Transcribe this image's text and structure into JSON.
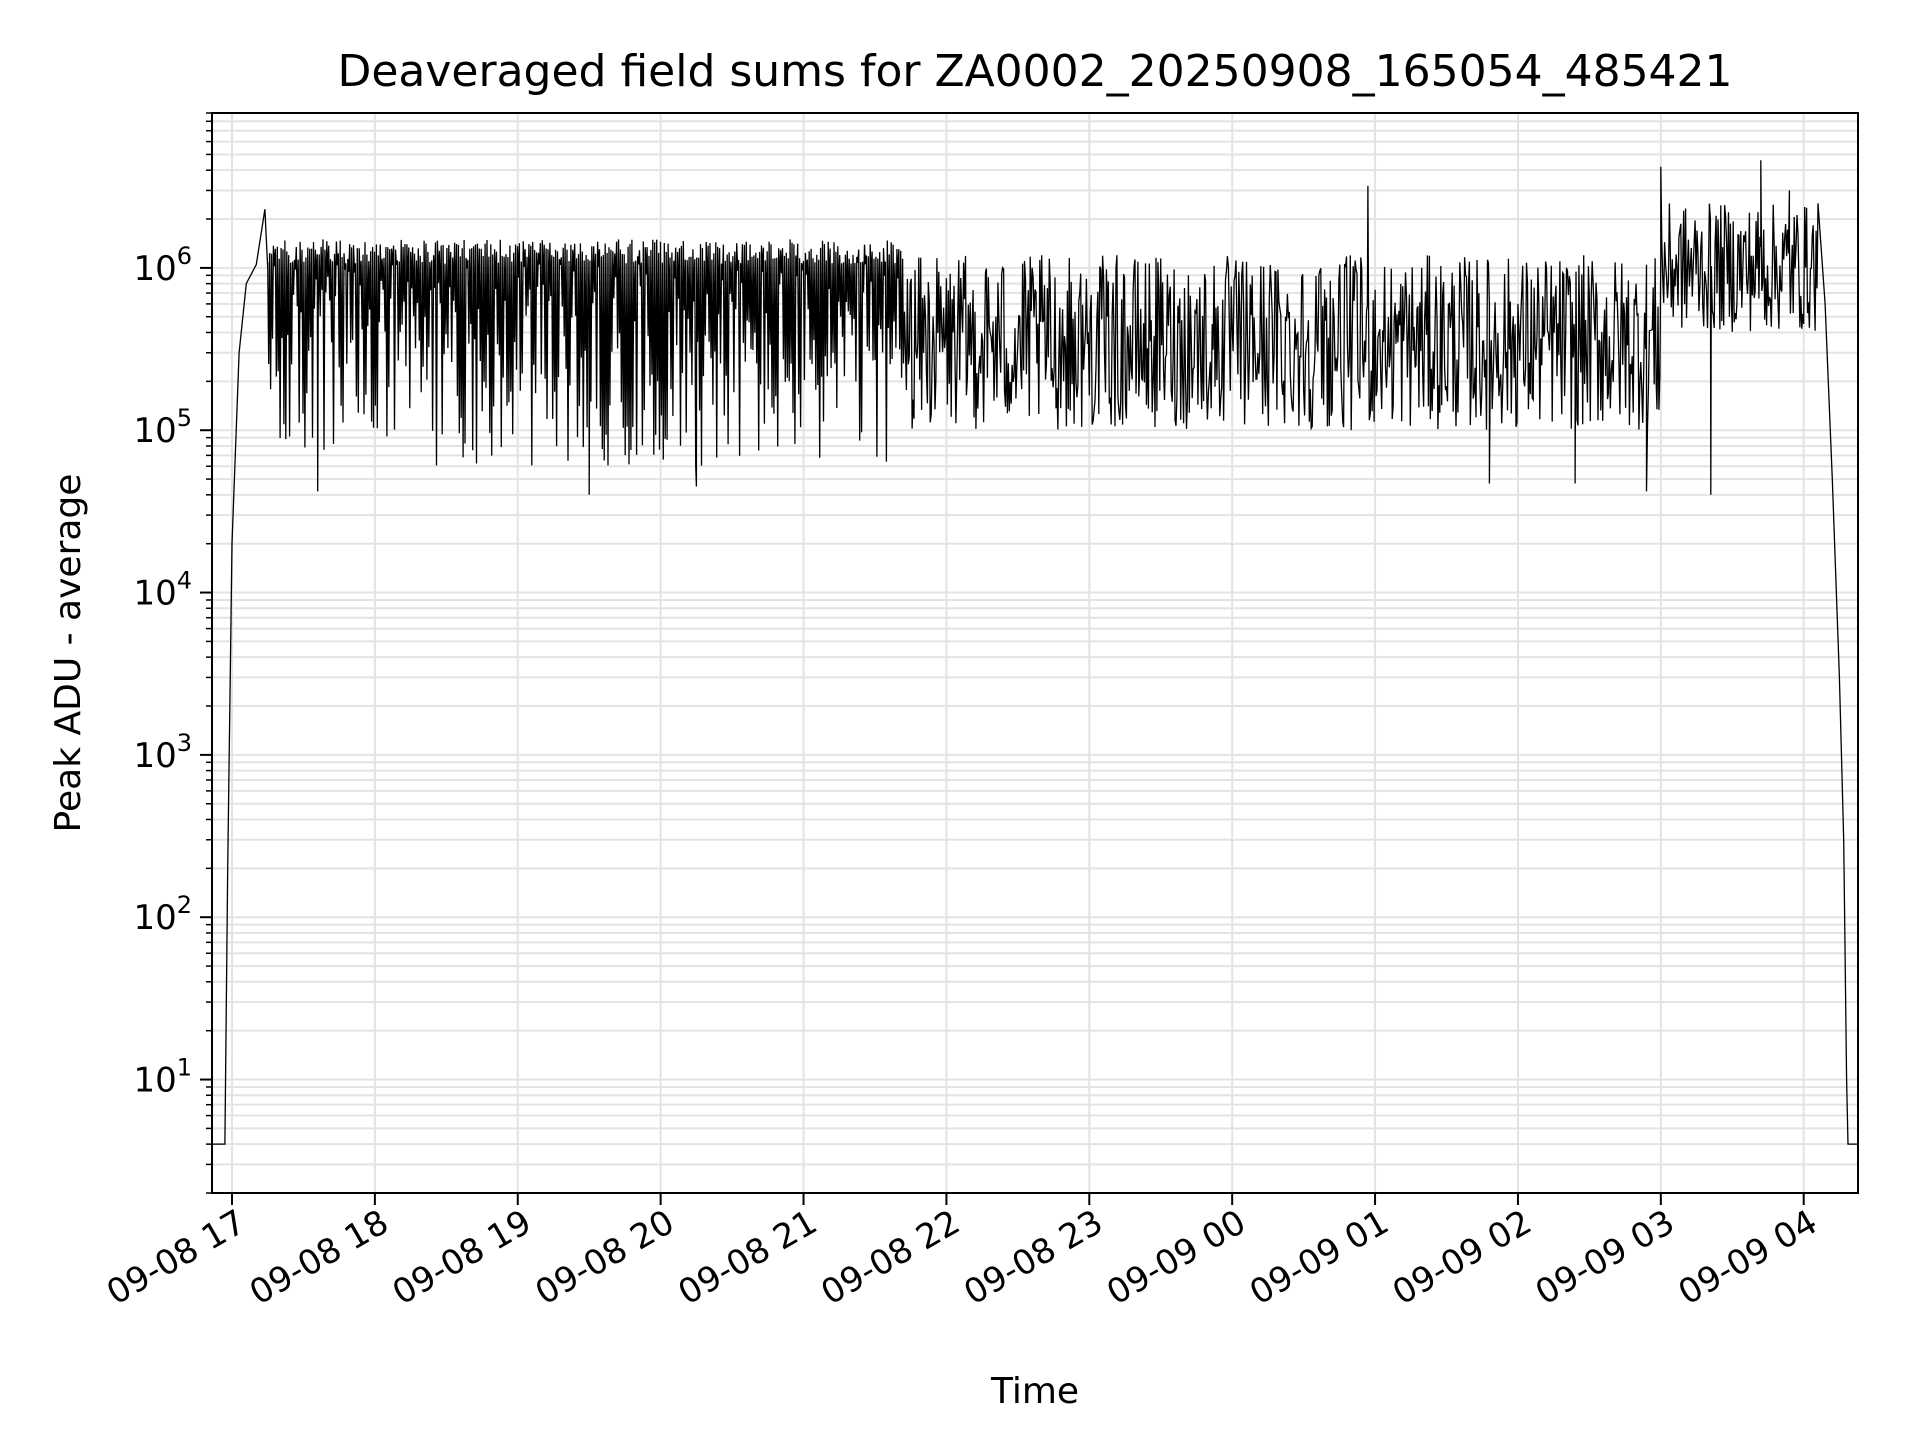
{
  "chart_data": {
    "type": "line",
    "title": "Deaveraged field sums for ZA0002_20250908_165054_485421",
    "xlabel": "Time",
    "ylabel": "Peak ADU - average",
    "yscale": "log",
    "ylim": [
      2,
      9000000
    ],
    "xlim_hours": [
      16.86,
      28.38
    ],
    "x_ticks": [
      {
        "label": "09-08 17",
        "hour": 17
      },
      {
        "label": "09-08 18",
        "hour": 18
      },
      {
        "label": "09-08 19",
        "hour": 19
      },
      {
        "label": "09-08 20",
        "hour": 20
      },
      {
        "label": "09-08 21",
        "hour": 21
      },
      {
        "label": "09-08 22",
        "hour": 22
      },
      {
        "label": "09-08 23",
        "hour": 23
      },
      {
        "label": "09-09 00",
        "hour": 24
      },
      {
        "label": "09-09 01",
        "hour": 25
      },
      {
        "label": "09-09 02",
        "hour": 26
      },
      {
        "label": "09-09 03",
        "hour": 27
      },
      {
        "label": "09-09 04",
        "hour": 28
      }
    ],
    "y_ticks": [
      {
        "base": "10",
        "exp": "1",
        "value": 10
      },
      {
        "base": "10",
        "exp": "2",
        "value": 100
      },
      {
        "base": "10",
        "exp": "3",
        "value": 1000
      },
      {
        "base": "10",
        "exp": "4",
        "value": 10000
      },
      {
        "base": "10",
        "exp": "5",
        "value": 100000
      },
      {
        "base": "10",
        "exp": "6",
        "value": 1000000
      }
    ],
    "grid": true,
    "line_color": "#000000",
    "grid_color": "#e3e3e3",
    "series": [
      {
        "name": "Deaveraged field sum",
        "envelope": [
          {
            "hour": 16.86,
            "value": 4
          },
          {
            "hour": 16.95,
            "value": 4
          },
          {
            "hour": 16.97,
            "value": 200
          },
          {
            "hour": 17.0,
            "value": 20000
          },
          {
            "hour": 17.05,
            "value": 300000
          },
          {
            "hour": 17.1,
            "value": 800000
          },
          {
            "hour": 17.17,
            "value": 1050000
          },
          {
            "hour": 17.25,
            "value": 1000000
          },
          {
            "hour": 27.7,
            "value": 1100000
          },
          {
            "hour": 28.05,
            "value": 1200000
          },
          {
            "hour": 28.15,
            "value": 600000
          },
          {
            "hour": 28.2,
            "value": 50000
          },
          {
            "hour": 28.25,
            "value": 3000
          },
          {
            "hour": 28.28,
            "value": 300
          },
          {
            "hour": 28.3,
            "value": 10
          },
          {
            "hour": 28.31,
            "value": 4
          },
          {
            "hour": 28.38,
            "value": 4
          }
        ],
        "oscillation_bands": [
          {
            "from_hour": 17.25,
            "to_hour": 21.7,
            "high": 1500000,
            "low": 60000
          },
          {
            "from_hour": 21.7,
            "to_hour": 27.0,
            "high": 1200000,
            "low": 100000
          },
          {
            "from_hour": 27.0,
            "to_hour": 28.1,
            "high": 2500000,
            "low": 400000
          }
        ],
        "peaks": [
          {
            "hour": 17.23,
            "value": 2300000
          },
          {
            "hour": 24.95,
            "value": 3200000
          },
          {
            "hour": 27.0,
            "value": 4200000
          },
          {
            "hour": 27.7,
            "value": 4600000
          },
          {
            "hour": 27.9,
            "value": 3000000
          },
          {
            "hour": 28.1,
            "value": 2500000
          }
        ],
        "troughs": [
          {
            "hour": 17.6,
            "value": 42000
          },
          {
            "hour": 19.5,
            "value": 40000
          },
          {
            "hour": 20.25,
            "value": 45000
          },
          {
            "hour": 25.8,
            "value": 47000
          },
          {
            "hour": 26.4,
            "value": 47000
          },
          {
            "hour": 26.9,
            "value": 42000
          },
          {
            "hour": 27.35,
            "value": 40000
          }
        ]
      }
    ]
  }
}
